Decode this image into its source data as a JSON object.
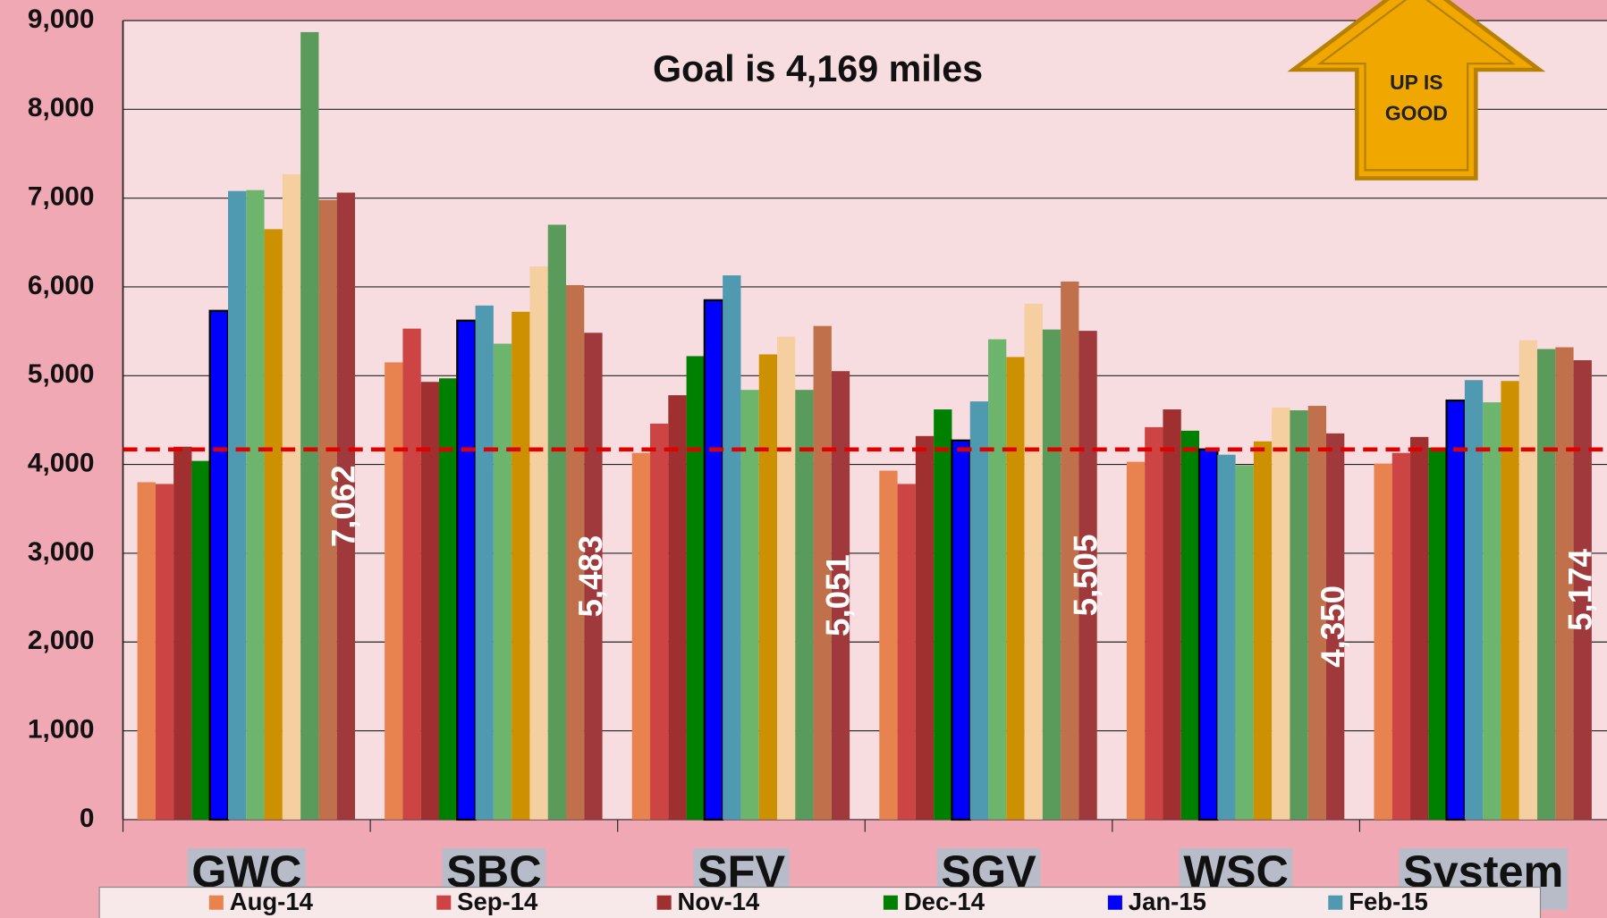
{
  "chart_data": {
    "type": "bar",
    "annotation": "Goal is 4,169 miles",
    "goal": 4169,
    "goal_color": "#E00000",
    "badge": [
      "UP IS",
      "GOOD"
    ],
    "categories": [
      "GWC",
      "SBC",
      "SFV",
      "SGV",
      "WSC",
      "System"
    ],
    "ylim": [
      0,
      9000
    ],
    "yticks": [
      0,
      {
        "value": 1000,
        "label": "1,000"
      },
      {
        "value": 2000,
        "label": "2,000"
      },
      {
        "value": 3000,
        "label": "3,000"
      },
      {
        "value": 4000,
        "label": "4,000"
      },
      {
        "value": 5000,
        "label": "5,000"
      },
      {
        "value": 6000,
        "label": "6,000"
      },
      {
        "value": 7000,
        "label": "7,000"
      },
      {
        "value": 8000,
        "label": "8,000"
      },
      {
        "value": 9000,
        "label": "9,000"
      }
    ],
    "grid": true,
    "legend": "bottom",
    "series": [
      {
        "name": "Aug-14",
        "color": "#E8834F",
        "values": [
          3800,
          5150,
          4130,
          3930,
          4030,
          4010
        ]
      },
      {
        "name": "Sep-14",
        "color": "#CC4444",
        "values": [
          3780,
          5530,
          4460,
          3780,
          4420,
          4130
        ]
      },
      {
        "name": "Nov-14",
        "color": "#A03030",
        "values": [
          4200,
          4930,
          4780,
          4320,
          4620,
          4310
        ]
      },
      {
        "name": "Dec-14",
        "color": "#008000",
        "values": [
          4040,
          4970,
          5220,
          4620,
          4380,
          4190
        ]
      },
      {
        "name": "Jan-15",
        "color": "#0000FF",
        "outline": "#000000",
        "values": [
          5730,
          5620,
          5850,
          4270,
          4170,
          4720
        ]
      },
      {
        "name": "Feb-15",
        "color": "#4F9AB0",
        "values": [
          7080,
          5790,
          6130,
          4710,
          4110,
          4950
        ]
      },
      {
        "name": null,
        "color": "#6DB56D",
        "values": [
          7090,
          5360,
          4840,
          5410,
          3990,
          4700
        ]
      },
      {
        "name": null,
        "color": "#CC9000",
        "values": [
          6650,
          5720,
          5240,
          5210,
          4260,
          4940
        ]
      },
      {
        "name": null,
        "color": "#F5CFA0",
        "values": [
          7270,
          6230,
          5440,
          5810,
          4640,
          5400
        ]
      },
      {
        "name": null,
        "color": "#5A9A5A",
        "values": [
          8870,
          6700,
          4840,
          5520,
          4610,
          5300
        ]
      },
      {
        "name": null,
        "color": "#C0704A",
        "values": [
          6980,
          6020,
          5560,
          6060,
          4660,
          5320
        ]
      },
      {
        "name": null,
        "color": "#A0393C",
        "values": [
          7062,
          5483,
          5051,
          5505,
          4350,
          5174
        ],
        "value_labels": [
          "7,062",
          "5,483",
          "5,051",
          "5,505",
          "4,350",
          "5,174"
        ]
      }
    ]
  }
}
